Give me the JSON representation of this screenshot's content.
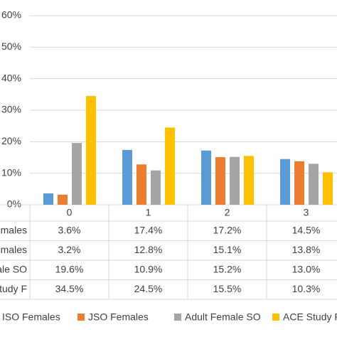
{
  "chart_data": {
    "type": "bar",
    "categories": [
      "0",
      "1",
      "2",
      "3"
    ],
    "series": [
      {
        "name": "ISO Females",
        "color": "#5b9bd5",
        "values": [
          3.6,
          17.4,
          17.2,
          14.5
        ],
        "value_labels": [
          "3.6%",
          "17.4%",
          "17.2%",
          "14.5%"
        ]
      },
      {
        "name": "JSO Females",
        "color": "#ed7d31",
        "values": [
          3.2,
          12.8,
          15.1,
          13.8
        ],
        "value_labels": [
          "3.2%",
          "12.8%",
          "15.1%",
          "13.8%"
        ]
      },
      {
        "name": "Adult Female SO",
        "color": "#a5a5a5",
        "values": [
          19.6,
          10.9,
          15.2,
          13.0
        ],
        "value_labels": [
          "19.6%",
          "10.9%",
          "15.2%",
          "13.0%"
        ]
      },
      {
        "name": "ACE Study F",
        "color": "#ffc000",
        "values": [
          34.5,
          24.5,
          15.5,
          10.3
        ],
        "value_labels": [
          "34.5%",
          "24.5%",
          "15.5%",
          "10.3%"
        ]
      }
    ],
    "ylim": [
      0,
      60
    ],
    "yticks": [
      {
        "value": 0,
        "label": "0%"
      },
      {
        "value": 10,
        "label": "10%"
      },
      {
        "value": 20,
        "label": "20%"
      },
      {
        "value": 30,
        "label": "30%"
      },
      {
        "value": 40,
        "label": "40%"
      },
      {
        "value": 50,
        "label": "50%"
      },
      {
        "value": 60,
        "label": "60%"
      }
    ],
    "grid": true
  }
}
